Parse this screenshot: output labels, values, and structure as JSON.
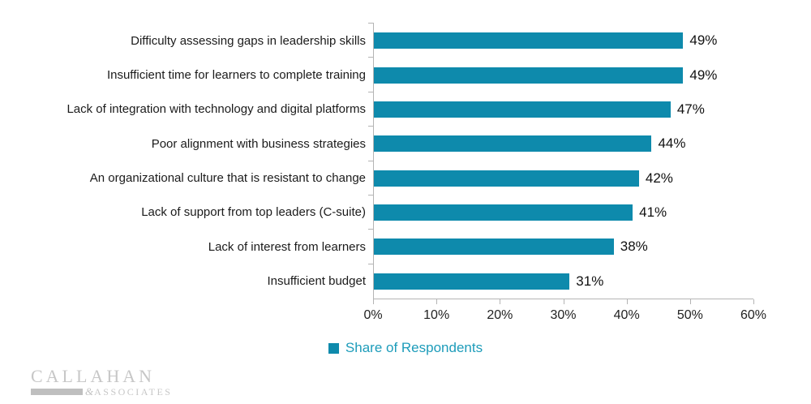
{
  "chart_data": {
    "type": "bar",
    "orientation": "horizontal",
    "title": "",
    "categories": [
      "Difficulty assessing gaps in leadership skills",
      "Insufficient time for learners to complete training",
      "Lack of integration with technology and digital platforms",
      "Poor alignment with business strategies",
      "An organizational culture that is resistant to change",
      "Lack of support from top leaders (C-suite)",
      "Lack of interest from learners",
      "Insufficient budget"
    ],
    "values": [
      49,
      49,
      47,
      44,
      42,
      41,
      38,
      31
    ],
    "value_labels": [
      "49%",
      "49%",
      "47%",
      "44%",
      "42%",
      "41%",
      "38%",
      "31%"
    ],
    "series_name": "Share of Respondents",
    "x_ticks": [
      "0%",
      "10%",
      "20%",
      "30%",
      "40%",
      "50%",
      "60%"
    ],
    "xlim": [
      0,
      60
    ],
    "grid": false,
    "legend_position": "bottom",
    "bar_color": "#0e8aac"
  },
  "legend": {
    "label": "Share of Respondents",
    "swatch_color": "#0e8aac"
  },
  "branding": {
    "name": "CALLAHAN",
    "ampersand": "&",
    "subname": "ASSOCIATES"
  },
  "colors": {
    "bar": "#0e8aac",
    "legend_text": "#1d9cba",
    "axis": "#b4b4b4",
    "category_text": "#1b1b1b",
    "value_text": "#111111",
    "tick_text": "#222222",
    "logo_gray": "#c7c7c7",
    "background": "#ffffff"
  }
}
